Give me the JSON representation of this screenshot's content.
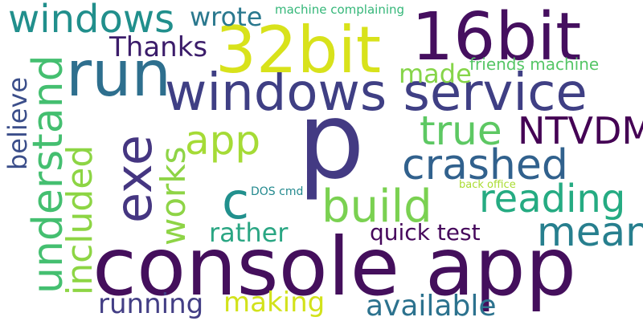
{
  "words": {
    "console_app": {
      "text": "console app",
      "color": "#440f5c"
    },
    "p": {
      "text": "p",
      "color": "#433a83"
    },
    "windows_service": {
      "text": "windows service",
      "color": "#3f3f84"
    },
    "w32bit": {
      "text": "32bit",
      "color": "#d8e21b"
    },
    "w16bit": {
      "text": "16bit",
      "color": "#450f5f"
    },
    "run": {
      "text": "run",
      "color": "#2e6f8e"
    },
    "exe": {
      "text": "exe",
      "color": "#453681"
    },
    "windows": {
      "text": "windows",
      "color": "#218f8c"
    },
    "understand": {
      "text": "understand",
      "color": "#44bf70"
    },
    "included": {
      "text": "included",
      "color": "#8dd544"
    },
    "believe": {
      "text": "believe",
      "color": "#3b4e8a"
    },
    "works": {
      "text": "works",
      "color": "#8ed446"
    },
    "c": {
      "text": "c",
      "color": "#21908d"
    },
    "app": {
      "text": "app",
      "color": "#a5db36"
    },
    "true": {
      "text": "true",
      "color": "#5dc863"
    },
    "ntvdm": {
      "text": "NTVDM",
      "color": "#440154"
    },
    "crashed": {
      "text": "crashed",
      "color": "#31618d"
    },
    "build": {
      "text": "build",
      "color": "#7ad151"
    },
    "reading": {
      "text": "reading",
      "color": "#25ab82"
    },
    "mean": {
      "text": "mean",
      "color": "#277f8e"
    },
    "rather": {
      "text": "rather",
      "color": "#2aa683"
    },
    "quick_test": {
      "text": "quick test",
      "color": "#46085c"
    },
    "running": {
      "text": "running",
      "color": "#433e85"
    },
    "making": {
      "text": "making",
      "color": "#d2e21b"
    },
    "available": {
      "text": "available",
      "color": "#2c728e"
    },
    "wrote": {
      "text": "wrote",
      "color": "#2a788e"
    },
    "thanks": {
      "text": "Thanks",
      "color": "#3b1c6a"
    },
    "made": {
      "text": "made",
      "color": "#86d549"
    },
    "friends_machine": {
      "text": "friends machine",
      "color": "#56c667"
    },
    "machine_complaining": {
      "text": "machine complaining",
      "color": "#35b779"
    },
    "dos_cmd": {
      "text": "DOS cmd",
      "color": "#23898e"
    },
    "back_office": {
      "text": "back office",
      "color": "#aadc32"
    }
  }
}
